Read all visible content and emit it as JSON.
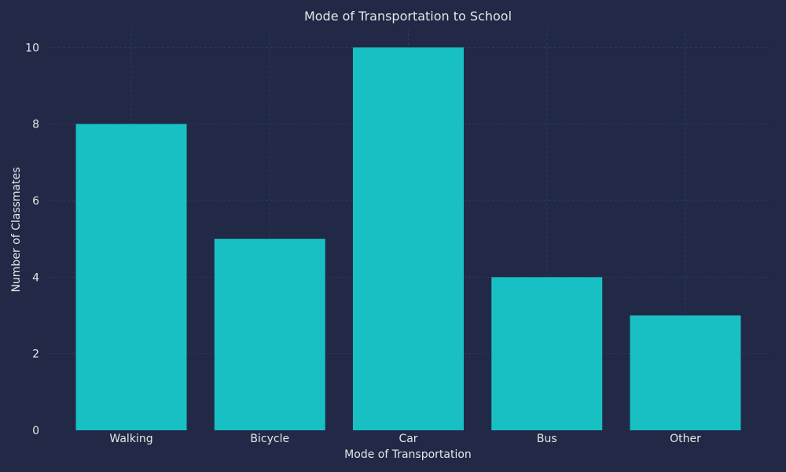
{
  "colors": {
    "background": "#212946",
    "bar": "#18c0c4",
    "text": "#e6e6e6",
    "grid": "#2d3a5c"
  },
  "chart_data": {
    "type": "bar",
    "title": "Mode of Transportation to School",
    "xlabel": "Mode of Transportation",
    "ylabel": "Number of Classmates",
    "categories": [
      "Walking",
      "Bicycle",
      "Car",
      "Bus",
      "Other"
    ],
    "values": [
      8,
      5,
      10,
      4,
      3
    ],
    "ylim": [
      0,
      10.5
    ],
    "yticks": [
      "0",
      "2",
      "4",
      "6",
      "8",
      "10"
    ],
    "grid": true,
    "legend": "none"
  }
}
